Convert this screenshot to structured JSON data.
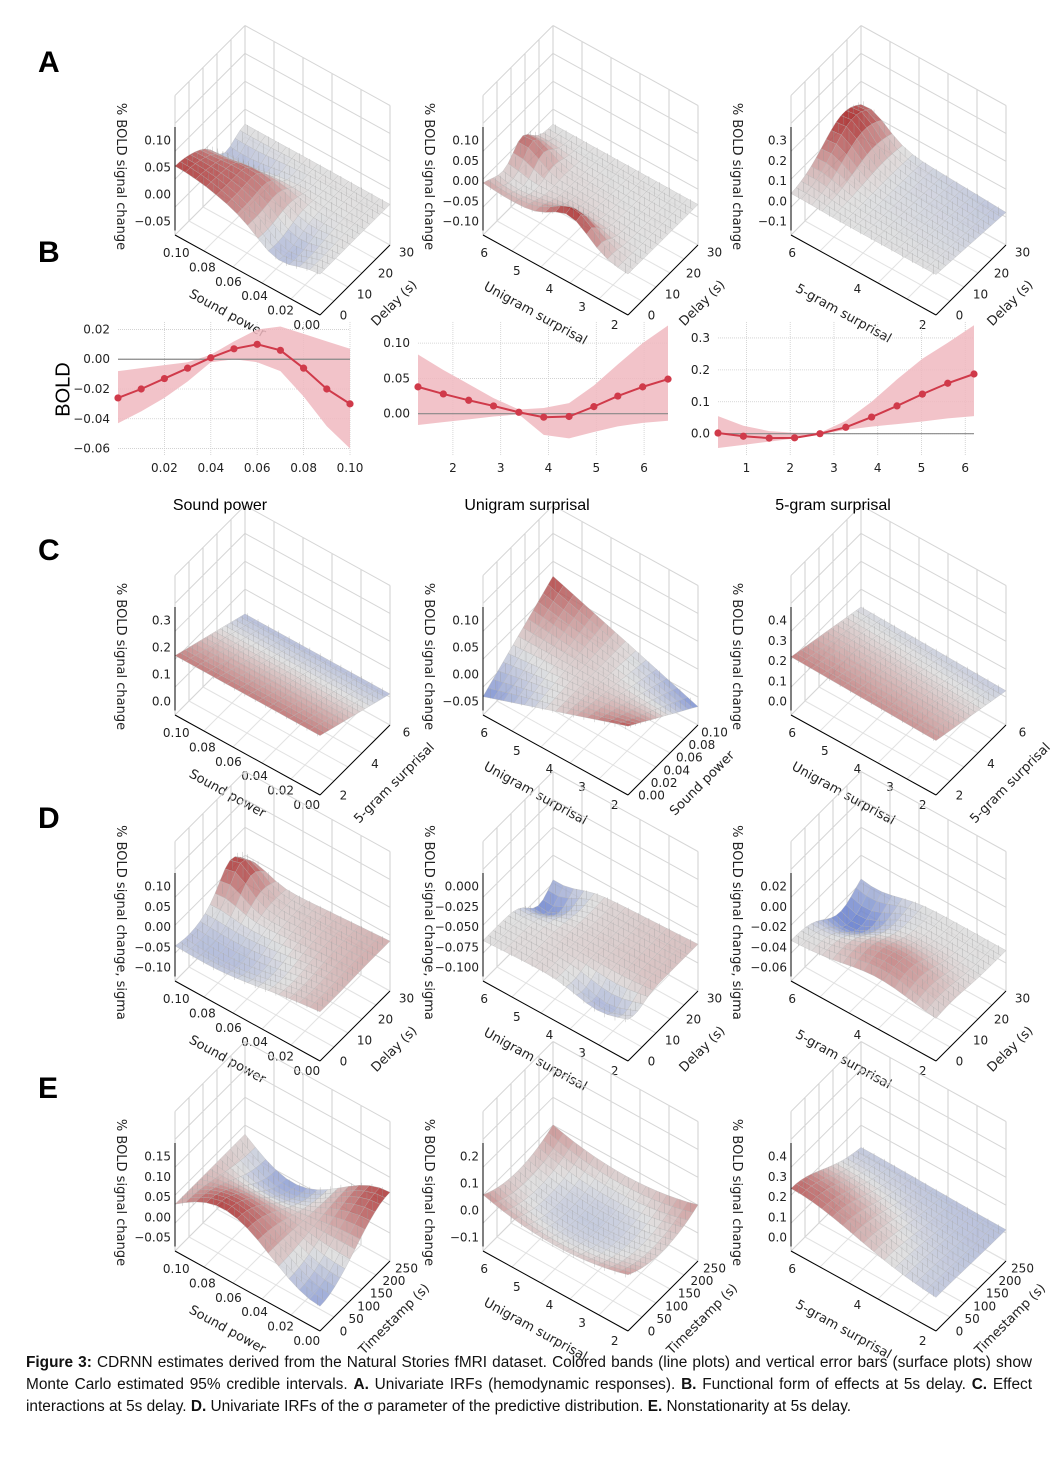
{
  "panels": {
    "A": "A",
    "B": "B",
    "C": "C",
    "D": "D",
    "E": "E"
  },
  "colors": {
    "line": "#d03a4a",
    "band": "#f0b8c0",
    "zero_line": "#888888",
    "surface_low": "#3b5cc8",
    "surface_mid": "#dcdcdc",
    "surface_high": "#a51c1c"
  },
  "surface_plots": [
    {
      "row": "A",
      "col": 0,
      "zlabel": "% BOLD signal change",
      "zticks": [
        "0.10",
        "0.05",
        "0.00",
        "−0.05"
      ],
      "xlabel": "Sound power",
      "xticks": [
        "0.10",
        "0.08",
        "0.06",
        "0.04",
        "0.02",
        "0.00"
      ],
      "ylabel": "Delay (s)",
      "yticks": [
        "0",
        "10",
        "20",
        "30"
      ],
      "shape": "peak-back-blue"
    },
    {
      "row": "A",
      "col": 1,
      "zlabel": "% BOLD signal change",
      "zticks": [
        "0.10",
        "0.05",
        "0.00",
        "−0.05",
        "−0.10"
      ],
      "xlabel": "Unigram surprisal",
      "xticks": [
        "6",
        "5",
        "4",
        "3",
        "2"
      ],
      "ylabel": "Delay (s)",
      "yticks": [
        "0",
        "10",
        "20",
        "30"
      ],
      "shape": "uni-delay"
    },
    {
      "row": "A",
      "col": 2,
      "zlabel": "% BOLD signal change",
      "zticks": [
        "0.3",
        "0.2",
        "0.1",
        "0.0",
        "−0.1"
      ],
      "xlabel": "5-gram surprisal",
      "xticks": [
        "6",
        "4",
        "2"
      ],
      "ylabel": "Delay (s)",
      "yticks": [
        "0",
        "10",
        "20",
        "30"
      ],
      "shape": "corner-left"
    },
    {
      "row": "C",
      "col": 0,
      "zlabel": "% BOLD signal change",
      "zticks": [
        "0.3",
        "0.2",
        "0.1",
        "0.0"
      ],
      "xlabel": "Sound power",
      "xticks": [
        "0.10",
        "0.08",
        "0.06",
        "0.04",
        "0.02",
        "0.00"
      ],
      "ylabel": "5-gram surprisal",
      "yticks": [
        "2",
        "4",
        "6"
      ],
      "shape": "ramp-back"
    },
    {
      "row": "C",
      "col": 1,
      "zlabel": "% BOLD signal change",
      "zticks": [
        "0.10",
        "0.05",
        "0.00",
        "−0.05"
      ],
      "xlabel": "Unigram surprisal",
      "xticks": [
        "6",
        "5",
        "4",
        "3",
        "2"
      ],
      "ylabel": "Sound power",
      "yticks": [
        "0.00",
        "0.02",
        "0.04",
        "0.06",
        "0.08",
        "0.10"
      ],
      "shape": "saddle"
    },
    {
      "row": "C",
      "col": 2,
      "zlabel": "% BOLD signal change",
      "zticks": [
        "0.4",
        "0.3",
        "0.2",
        "0.1",
        "0.0"
      ],
      "xlabel": "Unigram surprisal",
      "xticks": [
        "6",
        "5",
        "4",
        "3",
        "2"
      ],
      "ylabel": "5-gram surprisal",
      "yticks": [
        "2",
        "4",
        "6"
      ],
      "shape": "ramp-right"
    },
    {
      "row": "D",
      "col": 0,
      "zlabel": "% BOLD signal change, sigma",
      "zticks": [
        "0.10",
        "0.05",
        "0.00",
        "−0.05",
        "−0.10"
      ],
      "xlabel": "Sound power",
      "xticks": [
        "0.10",
        "0.08",
        "0.06",
        "0.04",
        "0.02",
        "0.00"
      ],
      "ylabel": "Delay (s)",
      "yticks": [
        "0",
        "10",
        "20",
        "30"
      ],
      "shape": "sigma-a"
    },
    {
      "row": "D",
      "col": 1,
      "zlabel": "% BOLD signal change, sigma",
      "zticks": [
        "0.000",
        "−0.025",
        "−0.050",
        "−0.075",
        "−0.100"
      ],
      "xlabel": "Unigram surprisal",
      "xticks": [
        "6",
        "5",
        "4",
        "3",
        "2"
      ],
      "ylabel": "Delay (s)",
      "yticks": [
        "0",
        "10",
        "20",
        "30"
      ],
      "shape": "sigma-b"
    },
    {
      "row": "D",
      "col": 2,
      "zlabel": "% BOLD signal change, sigma",
      "zticks": [
        "0.02",
        "0.00",
        "−0.02",
        "−0.04",
        "−0.06"
      ],
      "xlabel": "5-gram surprisal",
      "xticks": [
        "6",
        "4",
        "2"
      ],
      "ylabel": "Delay (s)",
      "yticks": [
        "0",
        "10",
        "20",
        "30"
      ],
      "shape": "sigma-c"
    },
    {
      "row": "E",
      "col": 0,
      "zlabel": "% BOLD signal change",
      "zticks": [
        "0.15",
        "0.10",
        "0.05",
        "0.00",
        "−0.05"
      ],
      "xlabel": "Sound power",
      "xticks": [
        "0.10",
        "0.08",
        "0.06",
        "0.04",
        "0.02",
        "0.00"
      ],
      "ylabel": "Timestamp (s)",
      "yticks": [
        "0",
        "50",
        "100",
        "150",
        "200",
        "250"
      ],
      "shape": "wave"
    },
    {
      "row": "E",
      "col": 1,
      "zlabel": "% BOLD signal change",
      "zticks": [
        "0.2",
        "0.1",
        "0.0",
        "−0.1"
      ],
      "xlabel": "Unigram surprisal",
      "xticks": [
        "6",
        "5",
        "4",
        "3",
        "2"
      ],
      "ylabel": "Timestamp (s)",
      "yticks": [
        "0",
        "50",
        "100",
        "150",
        "200",
        "250"
      ],
      "shape": "bowl"
    },
    {
      "row": "E",
      "col": 2,
      "zlabel": "% BOLD signal change",
      "zticks": [
        "0.4",
        "0.3",
        "0.2",
        "0.1",
        "0.0"
      ],
      "xlabel": "5-gram surprisal",
      "xticks": [
        "6",
        "4",
        "2"
      ],
      "ylabel": "Timestamp (s)",
      "yticks": [
        "0",
        "50",
        "100",
        "150",
        "200",
        "250"
      ],
      "shape": "peak-back"
    }
  ],
  "chart_data": [
    {
      "type": "line",
      "title": "",
      "xlabel": "Sound power",
      "ylabel": "BOLD",
      "xlim": [
        0.0,
        0.1
      ],
      "ylim": [
        -0.065,
        0.025
      ],
      "xticks": [
        0.02,
        0.04,
        0.06,
        0.08,
        0.1
      ],
      "xtick_labels": [
        "0.02",
        "0.04",
        "0.06",
        "0.08",
        "0.10"
      ],
      "yticks": [
        0.02,
        0.0,
        -0.02,
        -0.04,
        -0.06
      ],
      "ytick_labels": [
        "0.02",
        "0.00",
        "−0.02",
        "−0.04",
        "−0.06"
      ],
      "grid": true,
      "x": [
        0.0,
        0.01,
        0.02,
        0.03,
        0.04,
        0.05,
        0.06,
        0.07,
        0.08,
        0.09,
        0.1
      ],
      "y": [
        -0.026,
        -0.02,
        -0.013,
        -0.006,
        0.001,
        0.007,
        0.01,
        0.006,
        -0.006,
        -0.02,
        -0.03
      ],
      "band_lower": [
        -0.043,
        -0.035,
        -0.026,
        -0.015,
        -0.002,
        0.0,
        -0.002,
        -0.008,
        -0.025,
        -0.045,
        -0.06
      ],
      "band_upper": [
        -0.008,
        -0.006,
        -0.004,
        -0.002,
        0.003,
        0.012,
        0.02,
        0.022,
        0.017,
        0.012,
        0.007
      ],
      "band_label": "95% credible interval"
    },
    {
      "type": "line",
      "title": "",
      "xlabel": "Unigram surprisal",
      "ylabel": "",
      "xlim": [
        1.27,
        6.5
      ],
      "ylim": [
        -0.06,
        0.13
      ],
      "xticks": [
        2,
        3,
        4,
        5,
        6
      ],
      "xtick_labels": [
        "2",
        "3",
        "4",
        "5",
        "6"
      ],
      "yticks": [
        0.1,
        0.05,
        0.0
      ],
      "ytick_labels": [
        "0.10",
        "0.05",
        "0.00"
      ],
      "grid": true,
      "x": [
        1.27,
        1.8,
        2.33,
        2.85,
        3.38,
        3.9,
        4.43,
        4.95,
        5.45,
        5.97,
        6.5
      ],
      "y": [
        0.038,
        0.028,
        0.019,
        0.011,
        0.002,
        -0.005,
        -0.004,
        0.01,
        0.025,
        0.038,
        0.049
      ],
      "band_lower": [
        -0.016,
        -0.012,
        -0.008,
        -0.004,
        -0.001,
        -0.03,
        -0.035,
        -0.026,
        -0.018,
        -0.013,
        -0.01
      ],
      "band_upper": [
        0.084,
        0.062,
        0.042,
        0.022,
        0.006,
        0.008,
        0.015,
        0.04,
        0.07,
        0.1,
        0.125
      ],
      "band_label": "95% credible interval"
    },
    {
      "type": "line",
      "title": "",
      "xlabel": "5-gram surprisal",
      "ylabel": "",
      "xlim": [
        0.35,
        6.2
      ],
      "ylim": [
        -0.07,
        0.35
      ],
      "xticks": [
        1,
        2,
        3,
        4,
        5,
        6
      ],
      "xtick_labels": [
        "1",
        "2",
        "3",
        "4",
        "5",
        "6"
      ],
      "yticks": [
        0.3,
        0.2,
        0.1,
        0.0
      ],
      "ytick_labels": [
        "0.3",
        "0.2",
        "0.1",
        "0.0"
      ],
      "grid": true,
      "x": [
        0.35,
        0.93,
        1.52,
        2.1,
        2.68,
        3.27,
        3.86,
        4.44,
        5.02,
        5.6,
        6.2
      ],
      "y": [
        0.002,
        -0.008,
        -0.014,
        -0.013,
        0.0,
        0.02,
        0.052,
        0.087,
        0.124,
        0.158,
        0.187
      ],
      "band_lower": [
        -0.045,
        -0.035,
        -0.025,
        -0.015,
        -0.002,
        0.012,
        0.022,
        0.03,
        0.038,
        0.048,
        0.055
      ],
      "band_upper": [
        0.055,
        0.025,
        0.008,
        0.003,
        0.003,
        0.04,
        0.1,
        0.17,
        0.235,
        0.285,
        0.34
      ],
      "band_label": "95% credible interval"
    }
  ],
  "line_titles": [
    "Sound power",
    "Unigram surprisal",
    "5-gram surprisal"
  ],
  "line_ylabel": "BOLD",
  "caption": {
    "figure_label": "Figure 3:",
    "text1": " CDRNN estimates derived from the Natural Stories fMRI dataset.  Colored bands (line plots) and vertical error bars (surface plots) show Monte Carlo estimated 95% credible intervals.  ",
    "A_label": "A.",
    "A_text": " Univariate IRFs (hemodynamic responses). ",
    "B_label": "B.",
    "B_text": " Functional form of effects at 5s delay.  ",
    "C_label": "C.",
    "C_text": " Effect interactions at 5s delay.  ",
    "D_label": "D.",
    "D_text": " Univariate IRFs of the σ parameter of the predictive distribution. ",
    "E_label": "E.",
    "E_text": " Nonstationarity at 5s delay."
  }
}
